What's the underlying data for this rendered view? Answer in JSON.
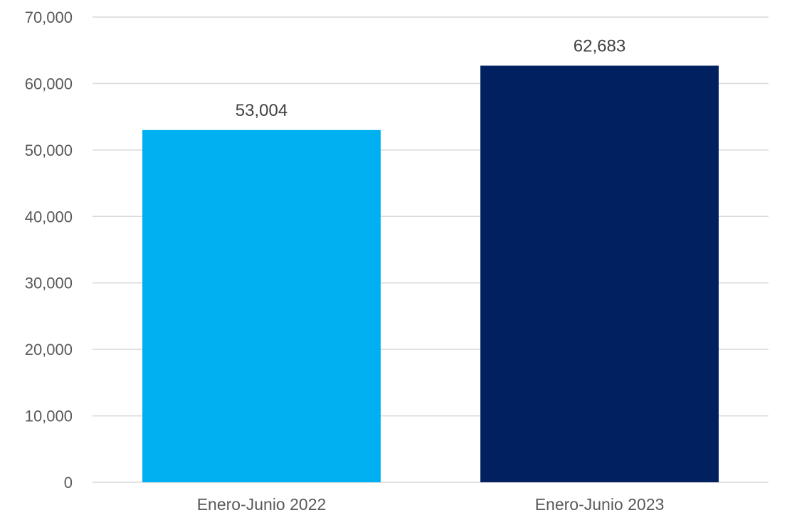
{
  "chart_data": {
    "type": "bar",
    "title": "",
    "xlabel": "",
    "ylabel": "",
    "categories": [
      "Enero-Junio 2022",
      "Enero-Junio 2023"
    ],
    "values": [
      53004,
      62683
    ],
    "data_labels": [
      "53,004",
      "62,683"
    ],
    "bar_colors": [
      "#00b0f0",
      "#002060"
    ],
    "ylim": [
      0,
      70000
    ],
    "yticks": [
      0,
      10000,
      20000,
      30000,
      40000,
      50000,
      60000,
      70000
    ],
    "ytick_labels": [
      "0",
      "10,000",
      "20,000",
      "30,000",
      "40,000",
      "50,000",
      "60,000",
      "70,000"
    ],
    "grid": true,
    "legend": "none"
  }
}
